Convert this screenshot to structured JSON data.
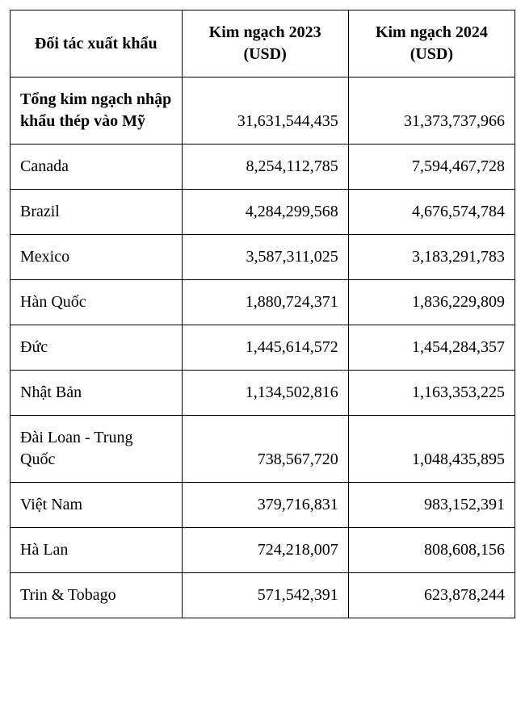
{
  "table": {
    "columns": [
      {
        "label": "Đối tác xuất khẩu"
      },
      {
        "label": "Kim ngạch 2023 (USD)"
      },
      {
        "label": "Kim ngạch 2024 (USD)"
      }
    ],
    "total_row": {
      "partner": "Tổng kim ngạch nhập khẩu thép vào Mỹ",
      "v2023": "31,631,544,435",
      "v2024": "31,373,737,966"
    },
    "rows": [
      {
        "partner": "Canada",
        "v2023": "8,254,112,785",
        "v2024": "7,594,467,728"
      },
      {
        "partner": "Brazil",
        "v2023": "4,284,299,568",
        "v2024": "4,676,574,784"
      },
      {
        "partner": "Mexico",
        "v2023": "3,587,311,025",
        "v2024": "3,183,291,783"
      },
      {
        "partner": "Hàn Quốc",
        "v2023": "1,880,724,371",
        "v2024": "1,836,229,809"
      },
      {
        "partner": "Đức",
        "v2023": "1,445,614,572",
        "v2024": "1,454,284,357"
      },
      {
        "partner": "Nhật Bản",
        "v2023": "1,134,502,816",
        "v2024": "1,163,353,225"
      },
      {
        "partner": "Đài Loan - Trung Quốc",
        "v2023": "738,567,720",
        "v2024": "1,048,435,895"
      },
      {
        "partner": "Việt Nam",
        "v2023": "379,716,831",
        "v2024": "983,152,391"
      },
      {
        "partner": "Hà Lan",
        "v2023": "724,218,007",
        "v2024": "808,608,156"
      },
      {
        "partner": "Trin & Tobago",
        "v2023": "571,542,391",
        "v2024": "623,878,244"
      }
    ],
    "style": {
      "border_color": "#000000",
      "background_color": "#ffffff",
      "font_family": "Times New Roman",
      "header_fontsize_pt": 15,
      "body_fontsize_pt": 15,
      "header_weight": "bold",
      "total_weight": "bold",
      "value_align": "right",
      "partner_align": "left",
      "col_widths_pct": [
        34,
        33,
        33
      ]
    }
  }
}
